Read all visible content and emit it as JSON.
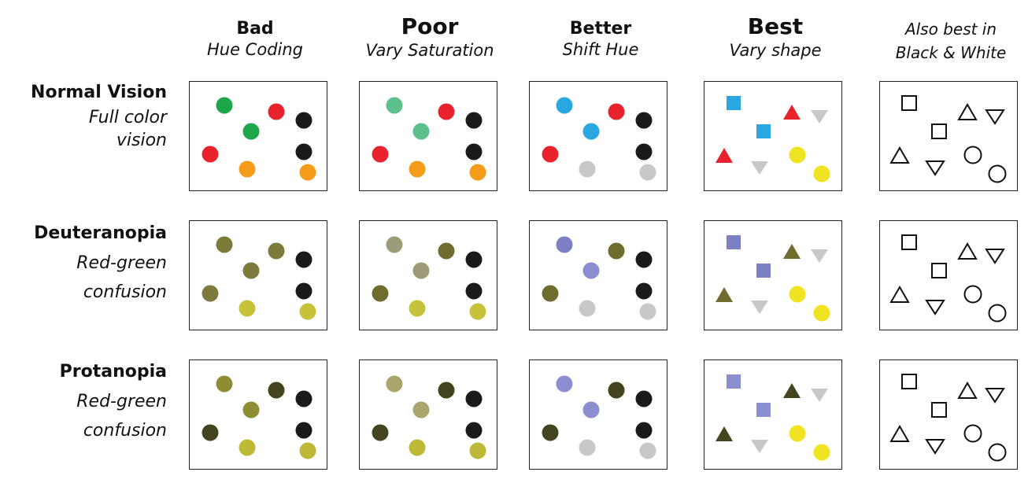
{
  "columns": [
    {
      "title": "Bad",
      "subtitle": "Hue Coding"
    },
    {
      "title": "Poor",
      "subtitle": "Vary Saturation"
    },
    {
      "title": "Better",
      "subtitle": "Shift Hue"
    },
    {
      "title": "Best",
      "subtitle": "Vary shape"
    },
    {
      "title": "",
      "subtitle": "Also best in Black & White"
    }
  ],
  "rows": [
    {
      "title": "Normal Vision",
      "subtitle_line1": "Full color",
      "subtitle_line2": "vision"
    },
    {
      "title": "Deuteranopia",
      "subtitle_line1": "Red-green",
      "subtitle_line2": "confusion"
    },
    {
      "title": "Protanopia",
      "subtitle_line1": "Red-green",
      "subtitle_line2": "confusion"
    }
  ],
  "colors": {
    "normal": {
      "bad": [
        "#1fa64a",
        "#e8232e",
        "#1fa64a",
        "#1a1a1a",
        "#e8232e",
        "#1a1a1a",
        "#f59c1a",
        "#f59c1a"
      ],
      "poor": [
        "#5dbf8c",
        "#e8232e",
        "#5dbf8c",
        "#1a1a1a",
        "#e8232e",
        "#1a1a1a",
        "#f59c1a",
        "#f59c1a"
      ],
      "better": [
        "#2aa6e0",
        "#e8232e",
        "#2aa6e0",
        "#1a1a1a",
        "#e8232e",
        "#1a1a1a",
        "#c8c8c8",
        "#c8c8c8"
      ],
      "shape": {
        "square": "#2aa6e0",
        "triangle": "#e8232e",
        "inverted": "#c8c8c8",
        "circle": "#f0e321"
      }
    },
    "deuteranopia": {
      "bad": [
        "#7d7a3c",
        "#7d7a3c",
        "#7d7a3c",
        "#1a1a1a",
        "#7d7a3c",
        "#1a1a1a",
        "#c6c23a",
        "#c6c23a"
      ],
      "poor": [
        "#9e9c78",
        "#6f6d2e",
        "#9e9c78",
        "#1a1a1a",
        "#6f6d2e",
        "#1a1a1a",
        "#c6c23a",
        "#c6c23a"
      ],
      "better": [
        "#7b80c4",
        "#6f6d2e",
        "#8a8fd0",
        "#1a1a1a",
        "#6f6d2e",
        "#1a1a1a",
        "#c8c8c8",
        "#c8c8c8"
      ],
      "shape": {
        "square": "#7b80c4",
        "triangle": "#6f6d2e",
        "inverted": "#c8c8c8",
        "circle": "#f0e321"
      }
    },
    "protanopia": {
      "bad": [
        "#908c35",
        "#44441f",
        "#908c35",
        "#1a1a1a",
        "#44441f",
        "#1a1a1a",
        "#bdb936",
        "#bdb936"
      ],
      "poor": [
        "#a9a66d",
        "#44441f",
        "#a9a66d",
        "#1a1a1a",
        "#44441f",
        "#1a1a1a",
        "#bdb936",
        "#bdb936"
      ],
      "better": [
        "#8a8fd0",
        "#44441f",
        "#8a8fd0",
        "#1a1a1a",
        "#44441f",
        "#1a1a1a",
        "#c8c8c8",
        "#c8c8c8"
      ],
      "shape": {
        "square": "#8a8fd0",
        "triangle": "#44441f",
        "inverted": "#c8c8c8",
        "circle": "#f0e321"
      }
    }
  }
}
